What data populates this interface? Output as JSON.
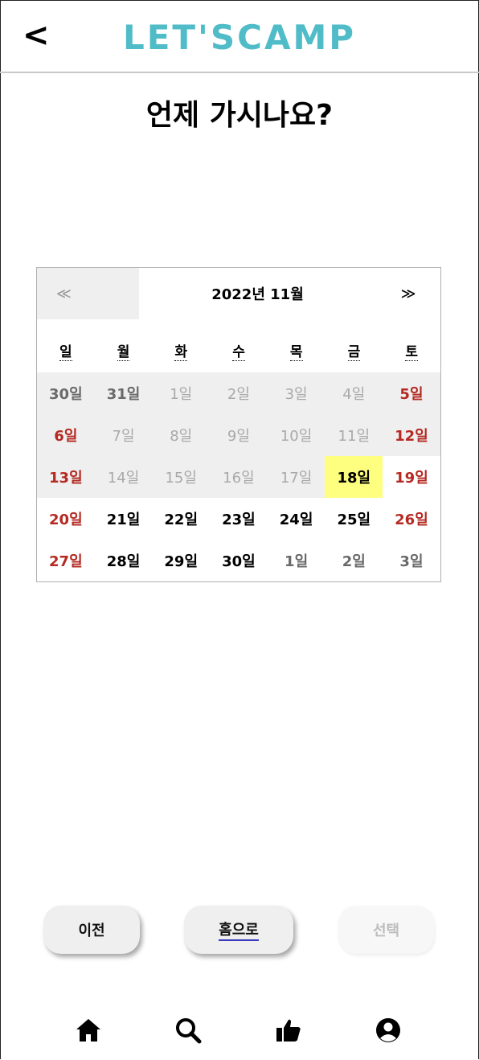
{
  "header": {
    "back_label": "<",
    "logo": "LET'SCAMP"
  },
  "page_title": "언제 가시나요?",
  "calendar": {
    "prev_label": "≪",
    "month_label": "2022년 11월",
    "next_label": "≫",
    "weekdays": [
      "일",
      "월",
      "화",
      "수",
      "목",
      "금",
      "토"
    ],
    "weeks": [
      [
        "30일",
        "31일",
        "1일",
        "2일",
        "3일",
        "4일",
        "5일"
      ],
      [
        "6일",
        "7일",
        "8일",
        "9일",
        "10일",
        "11일",
        "12일"
      ],
      [
        "13일",
        "14일",
        "15일",
        "16일",
        "17일",
        "18일",
        "19일"
      ],
      [
        "20일",
        "21일",
        "22일",
        "23일",
        "24일",
        "25일",
        "26일"
      ],
      [
        "27일",
        "28일",
        "29일",
        "30일",
        "1일",
        "2일",
        "3일"
      ]
    ],
    "selected_day": "18일"
  },
  "buttons": {
    "prev": "이전",
    "home": "홈으로",
    "select": "선택"
  },
  "bottom_nav": [
    "home-icon",
    "search-icon",
    "thumbs-up-icon",
    "profile-icon"
  ],
  "colors": {
    "logo": "#4fbcc8",
    "weekend": "#b52a23",
    "selected": "#ffff7f"
  }
}
